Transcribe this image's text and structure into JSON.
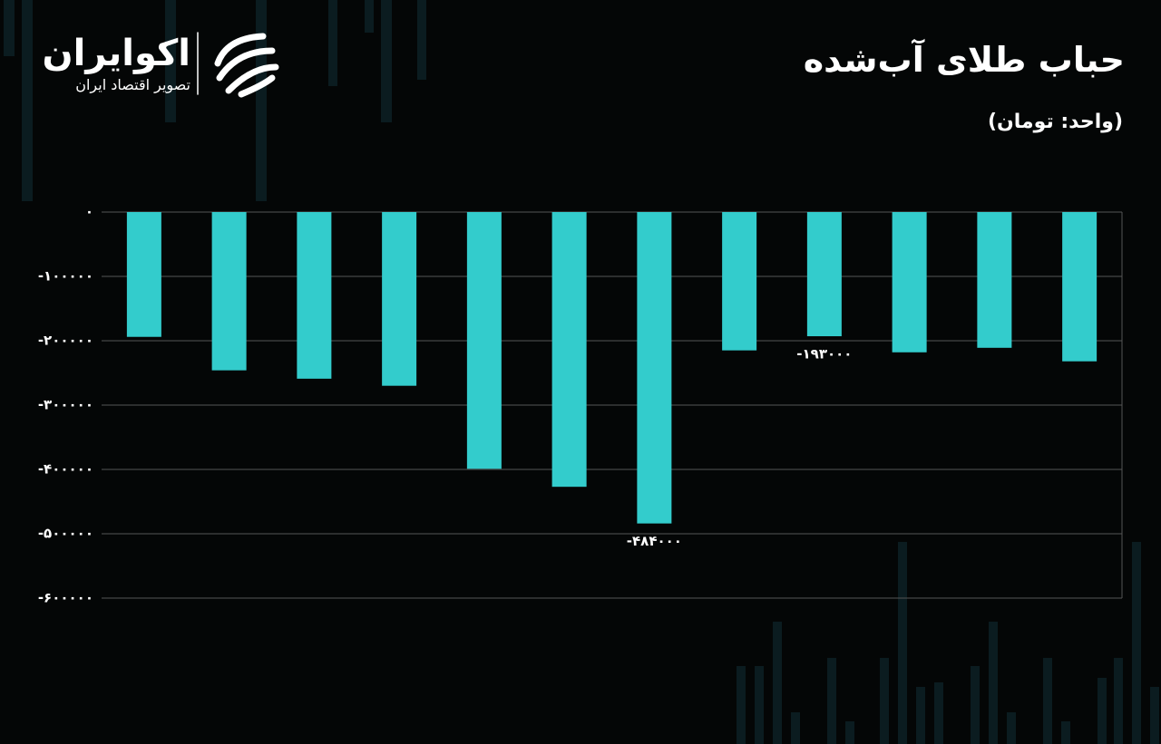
{
  "brand": {
    "name": "اکوایران",
    "tagline": "تصویر اقتصاد ایران"
  },
  "chart_data": {
    "type": "bar",
    "title": "حباب طلای آب‌شده",
    "subtitle": "(واحد: تومان)",
    "categories": [
      null,
      null,
      null,
      null,
      null,
      null,
      null,
      null,
      null,
      null,
      null,
      null
    ],
    "values": [
      -194000,
      -246000,
      -259000,
      -270000,
      -399000,
      -427000,
      -484000,
      -215000,
      -193000,
      -218000,
      -211000,
      -232000
    ],
    "value_labels": [
      null,
      null,
      null,
      null,
      null,
      null,
      "-۴۸۴۰۰۰",
      null,
      "-۱۹۳۰۰۰",
      null,
      null,
      null
    ],
    "color": "#33cccc",
    "ylim": [
      -600000,
      0
    ],
    "yticks": [
      {
        "value": 0,
        "label": "۰"
      },
      {
        "value": -100000,
        "label": "-۱۰۰۰۰۰"
      },
      {
        "value": -200000,
        "label": "-۲۰۰۰۰۰"
      },
      {
        "value": -300000,
        "label": "-۳۰۰۰۰۰"
      },
      {
        "value": -400000,
        "label": "-۴۰۰۰۰۰"
      },
      {
        "value": -500000,
        "label": "-۵۰۰۰۰۰"
      },
      {
        "value": -600000,
        "label": "-۶۰۰۰۰۰"
      }
    ],
    "grid": true
  }
}
